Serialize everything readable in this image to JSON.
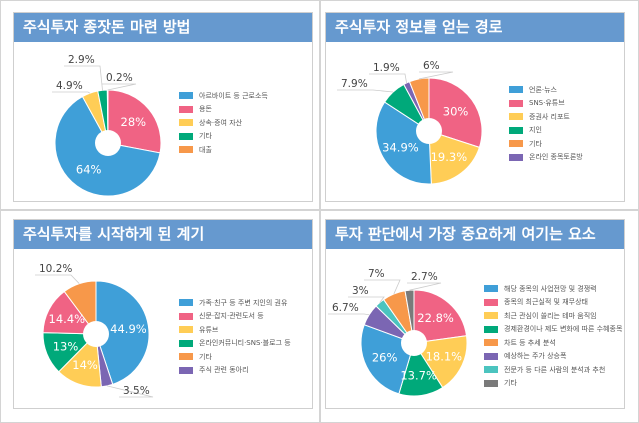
{
  "colors": {
    "title_bar": "#6699cf"
  },
  "chart_data": [
    {
      "type": "pie",
      "title": "주식투자 종잣돈 마련 방법",
      "categories": [
        "아르바이트 등 근로소득",
        "용돈",
        "상속·증여 자산",
        "기타",
        "대출"
      ],
      "values": [
        64,
        28,
        4.9,
        2.9,
        0.2
      ],
      "labels": [
        "64%",
        "28%",
        "4.9%",
        "2.9%",
        "0.2%"
      ],
      "colors": [
        "#3f9fd8",
        "#f06384",
        "#ffcd56",
        "#00a97a",
        "#f7984a"
      ],
      "legend": "right"
    },
    {
      "type": "pie",
      "title": "주식투자 정보를 얻는 경로",
      "categories": [
        "언론·뉴스",
        "SNS·유튜브",
        "증권사 리포트",
        "지인",
        "기타",
        "온라인 종목토론방"
      ],
      "values": [
        34.9,
        30,
        19.3,
        7.9,
        6,
        1.9
      ],
      "labels": [
        "34.9%",
        "30%",
        "19.3%",
        "7.9%",
        "6%",
        "1.9%"
      ],
      "colors": [
        "#3f9fd8",
        "#f06384",
        "#ffcd56",
        "#00a97a",
        "#f7984a",
        "#7b66b3"
      ],
      "legend": "right"
    },
    {
      "type": "pie",
      "title": "주식투자를 시작하게 된 계기",
      "categories": [
        "가족·친구 등 주변 지인의 권유",
        "신문·잡지·관련도서 등",
        "유튜브",
        "온라인커뮤니티·SNS·블로그 등",
        "기타",
        "주식 관련 동아리"
      ],
      "values": [
        44.9,
        14.4,
        14,
        13,
        10.2,
        3.5
      ],
      "labels": [
        "44.9%",
        "14.4%",
        "14%",
        "13%",
        "10.2%",
        "3.5%"
      ],
      "colors": [
        "#3f9fd8",
        "#f06384",
        "#ffcd56",
        "#00a97a",
        "#f7984a",
        "#7b66b3"
      ],
      "legend": "right"
    },
    {
      "type": "pie",
      "title": "투자 판단에서 가장 중요하게 여기는 요소",
      "categories": [
        "해당 종목의 사업전망 및 경쟁력",
        "종목의 최근실적 및 재무상태",
        "최근 관심이 쏠리는 테마 움직임",
        "경제환경이나 제도 변화에 따른 수혜종목",
        "차트 등 추세 분석",
        "예상하는 주가 상승폭",
        "전문가 등 다른 사람의 분석과 추천",
        "기타"
      ],
      "values": [
        26,
        22.8,
        18.1,
        13.7,
        7,
        6.7,
        3,
        2.7
      ],
      "labels": [
        "26%",
        "22.8%",
        "18.1%",
        "13.7%",
        "7%",
        "6.7%",
        "3%",
        "2.7%"
      ],
      "colors": [
        "#3f9fd8",
        "#f06384",
        "#ffcd56",
        "#00a97a",
        "#f7984a",
        "#7b66b3",
        "#4bc4bf",
        "#7a7a7a"
      ],
      "legend": "right"
    }
  ]
}
